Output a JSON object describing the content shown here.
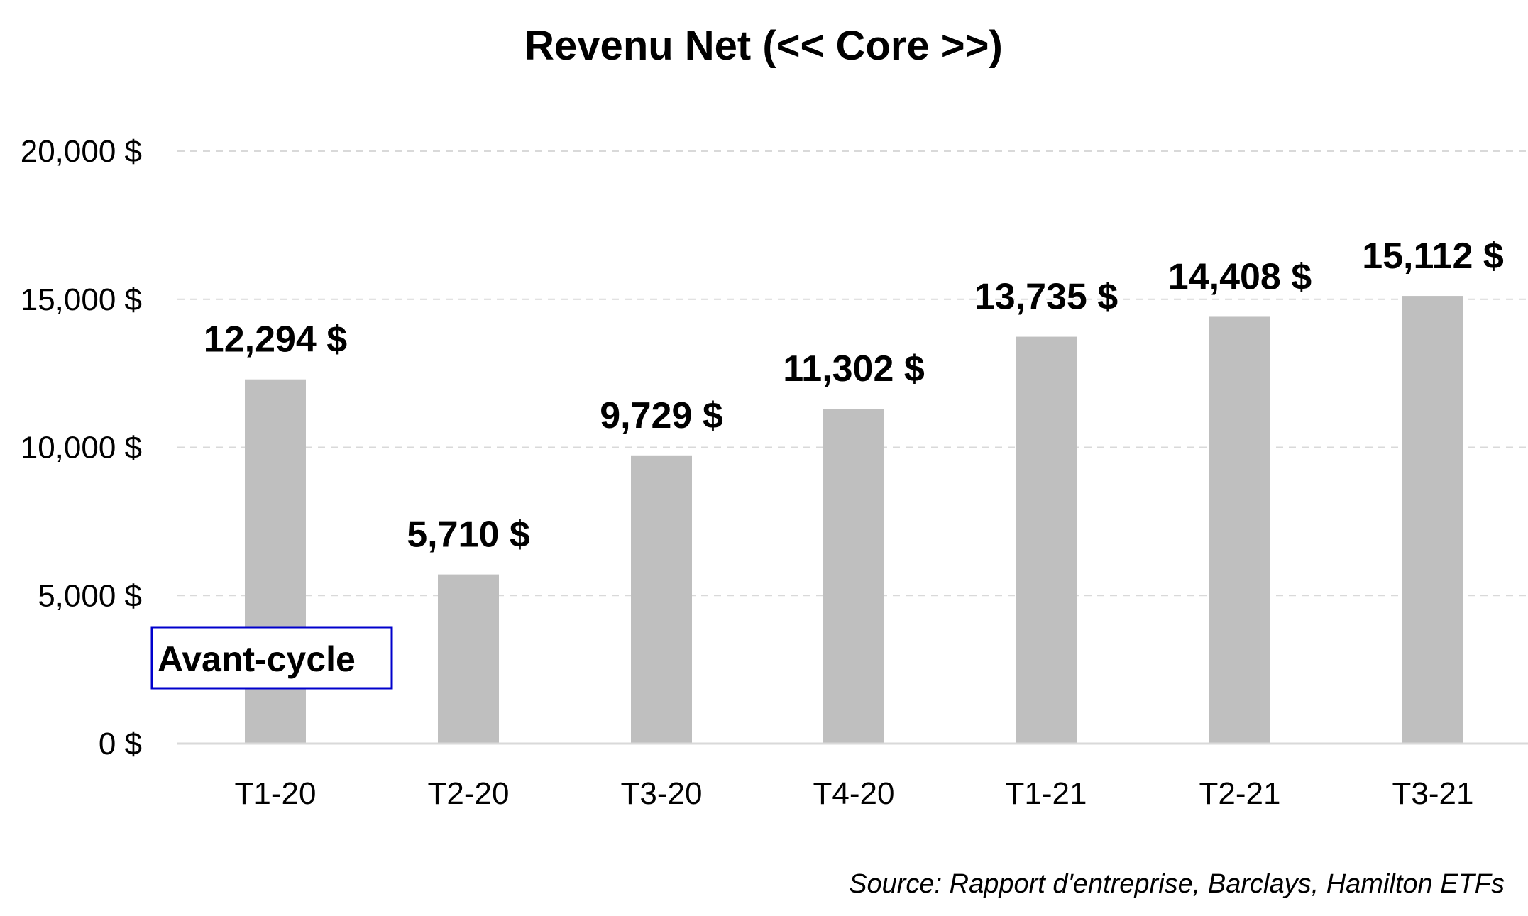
{
  "chart_data": {
    "type": "bar",
    "title": "Revenu Net (<< Core >>)",
    "categories": [
      "T1-20",
      "T2-20",
      "T3-20",
      "T4-20",
      "T1-21",
      "T2-21",
      "T3-21"
    ],
    "values": [
      12294,
      5710,
      9729,
      11302,
      13735,
      14408,
      15112
    ],
    "data_labels": [
      "12,294 $",
      "5,710 $",
      "9,729 $",
      "11,302 $",
      "13,735 $",
      "14,408 $",
      "15,112 $"
    ],
    "ylim": [
      0,
      20000
    ],
    "yticks": [
      0,
      5000,
      10000,
      15000,
      20000
    ],
    "ytick_labels": [
      "0 $",
      "5,000 $",
      "10,000 $",
      "15,000 $",
      "20,000 $"
    ],
    "grid": true,
    "bar_color": "#bfbfbf",
    "annotation": {
      "text": "Avant-cycle",
      "border_color": "#0000cc"
    },
    "source": "Source: Rapport d'entreprise, Barclays, Hamilton ETFs"
  }
}
